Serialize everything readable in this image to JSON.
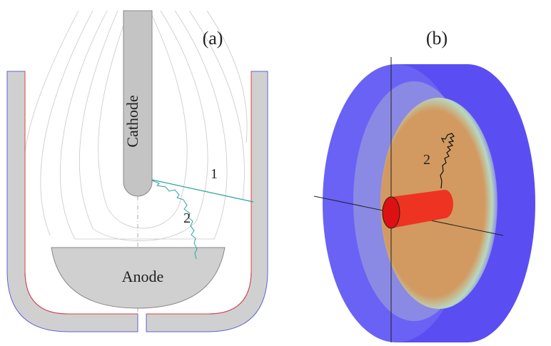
{
  "panels": [
    {
      "label": "(a)",
      "cathode": "Cathode",
      "anode": "Anode",
      "trajectories": [
        "1",
        "2"
      ]
    },
    {
      "label": "(b)",
      "trajectories": [
        "2"
      ]
    }
  ]
}
